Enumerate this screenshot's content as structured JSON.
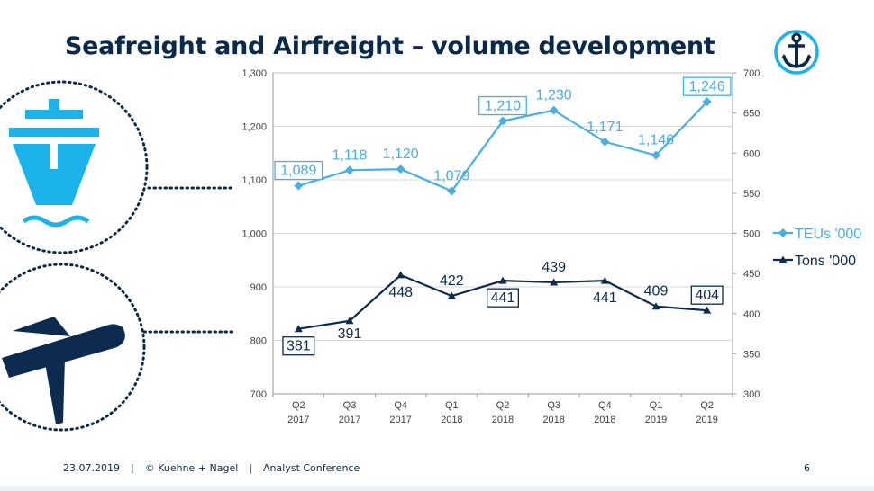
{
  "title": "Seafreight and Airfreight – volume development",
  "footer": {
    "date": "23.07.2019",
    "company": "© Kuehne + Nagel",
    "event": "Analyst Conference",
    "page": "6",
    "separator": "|"
  },
  "icons": [
    "ship-icon",
    "airplane-icon",
    "anchor-logo-icon"
  ],
  "colors": {
    "teu": "#4aaee0",
    "tons": "#0d2a4f",
    "title": "#0b2a4a",
    "grid": "#d9d9d9",
    "ship": "#1bb3ea"
  },
  "chart_data": {
    "type": "line",
    "categories": [
      [
        "Q2",
        "2017"
      ],
      [
        "Q3",
        "2017"
      ],
      [
        "Q4",
        "2017"
      ],
      [
        "Q1",
        "2018"
      ],
      [
        "Q2",
        "2018"
      ],
      [
        "Q3",
        "2018"
      ],
      [
        "Q4",
        "2018"
      ],
      [
        "Q1",
        "2019"
      ],
      [
        "Q2",
        "2019"
      ]
    ],
    "y_left": {
      "min": 700,
      "max": 1300,
      "ticks": [
        "700",
        "800",
        "900",
        "1,000",
        "1,100",
        "1,200",
        "1,300"
      ]
    },
    "y_right": {
      "min": 300,
      "max": 700,
      "ticks": [
        "300",
        "350",
        "400",
        "450",
        "500",
        "550",
        "600",
        "650",
        "700"
      ]
    },
    "grid": true,
    "legend_position": "right",
    "series": [
      {
        "name": "TEUs '000",
        "axis": "left",
        "marker": "diamond",
        "values": [
          1089,
          1118,
          1120,
          1079,
          1210,
          1230,
          1171,
          1146,
          1246
        ],
        "labels": [
          "1,089",
          "1,118",
          "1,120",
          "1,079",
          "1,210",
          "1,230",
          "1,171",
          "1,146",
          "1,246"
        ],
        "boxed": [
          true,
          false,
          false,
          false,
          true,
          false,
          false,
          false,
          true
        ]
      },
      {
        "name": "Tons '000",
        "axis": "right",
        "marker": "triangle",
        "values": [
          381,
          391,
          448,
          422,
          441,
          439,
          441,
          409,
          404
        ],
        "labels": [
          "381",
          "391",
          "448",
          "422",
          "441",
          "439",
          "441",
          "409",
          "404"
        ],
        "boxed": [
          true,
          false,
          false,
          false,
          true,
          false,
          false,
          false,
          true
        ]
      }
    ]
  }
}
